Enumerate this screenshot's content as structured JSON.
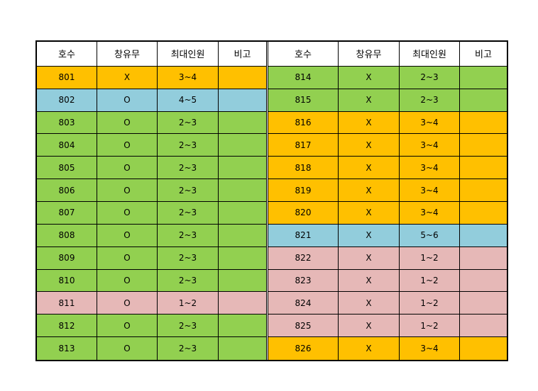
{
  "headers": {
    "room": "호수",
    "window": "창유무",
    "max_people": "최대인원",
    "note": "비고"
  },
  "colors": {
    "orange": "#ffc000",
    "blue": "#92cddc",
    "green": "#92d050",
    "pink": "#e6b8b7"
  },
  "left_rows": [
    {
      "room": "801",
      "window": "X",
      "max_people": "3~4",
      "note": "",
      "color": "orange"
    },
    {
      "room": "802",
      "window": "O",
      "max_people": "4~5",
      "note": "",
      "color": "blue"
    },
    {
      "room": "803",
      "window": "O",
      "max_people": "2~3",
      "note": "",
      "color": "green"
    },
    {
      "room": "804",
      "window": "O",
      "max_people": "2~3",
      "note": "",
      "color": "green"
    },
    {
      "room": "805",
      "window": "O",
      "max_people": "2~3",
      "note": "",
      "color": "green"
    },
    {
      "room": "806",
      "window": "O",
      "max_people": "2~3",
      "note": "",
      "color": "green"
    },
    {
      "room": "807",
      "window": "O",
      "max_people": "2~3",
      "note": "",
      "color": "green"
    },
    {
      "room": "808",
      "window": "O",
      "max_people": "2~3",
      "note": "",
      "color": "green"
    },
    {
      "room": "809",
      "window": "O",
      "max_people": "2~3",
      "note": "",
      "color": "green"
    },
    {
      "room": "810",
      "window": "O",
      "max_people": "2~3",
      "note": "",
      "color": "green"
    },
    {
      "room": "811",
      "window": "O",
      "max_people": "1~2",
      "note": "",
      "color": "pink"
    },
    {
      "room": "812",
      "window": "O",
      "max_people": "2~3",
      "note": "",
      "color": "green"
    },
    {
      "room": "813",
      "window": "O",
      "max_people": "2~3",
      "note": "",
      "color": "green"
    }
  ],
  "right_rows": [
    {
      "room": "814",
      "window": "X",
      "max_people": "2~3",
      "note": "",
      "color": "green"
    },
    {
      "room": "815",
      "window": "X",
      "max_people": "2~3",
      "note": "",
      "color": "green"
    },
    {
      "room": "816",
      "window": "X",
      "max_people": "3~4",
      "note": "",
      "color": "orange"
    },
    {
      "room": "817",
      "window": "X",
      "max_people": "3~4",
      "note": "",
      "color": "orange"
    },
    {
      "room": "818",
      "window": "X",
      "max_people": "3~4",
      "note": "",
      "color": "orange"
    },
    {
      "room": "819",
      "window": "X",
      "max_people": "3~4",
      "note": "",
      "color": "orange"
    },
    {
      "room": "820",
      "window": "X",
      "max_people": "3~4",
      "note": "",
      "color": "orange"
    },
    {
      "room": "821",
      "window": "X",
      "max_people": "5~6",
      "note": "",
      "color": "blue"
    },
    {
      "room": "822",
      "window": "X",
      "max_people": "1~2",
      "note": "",
      "color": "pink"
    },
    {
      "room": "823",
      "window": "X",
      "max_people": "1~2",
      "note": "",
      "color": "pink"
    },
    {
      "room": "824",
      "window": "X",
      "max_people": "1~2",
      "note": "",
      "color": "pink"
    },
    {
      "room": "825",
      "window": "X",
      "max_people": "1~2",
      "note": "",
      "color": "pink"
    },
    {
      "room": "826",
      "window": "X",
      "max_people": "3~4",
      "note": "",
      "color": "orange"
    }
  ]
}
